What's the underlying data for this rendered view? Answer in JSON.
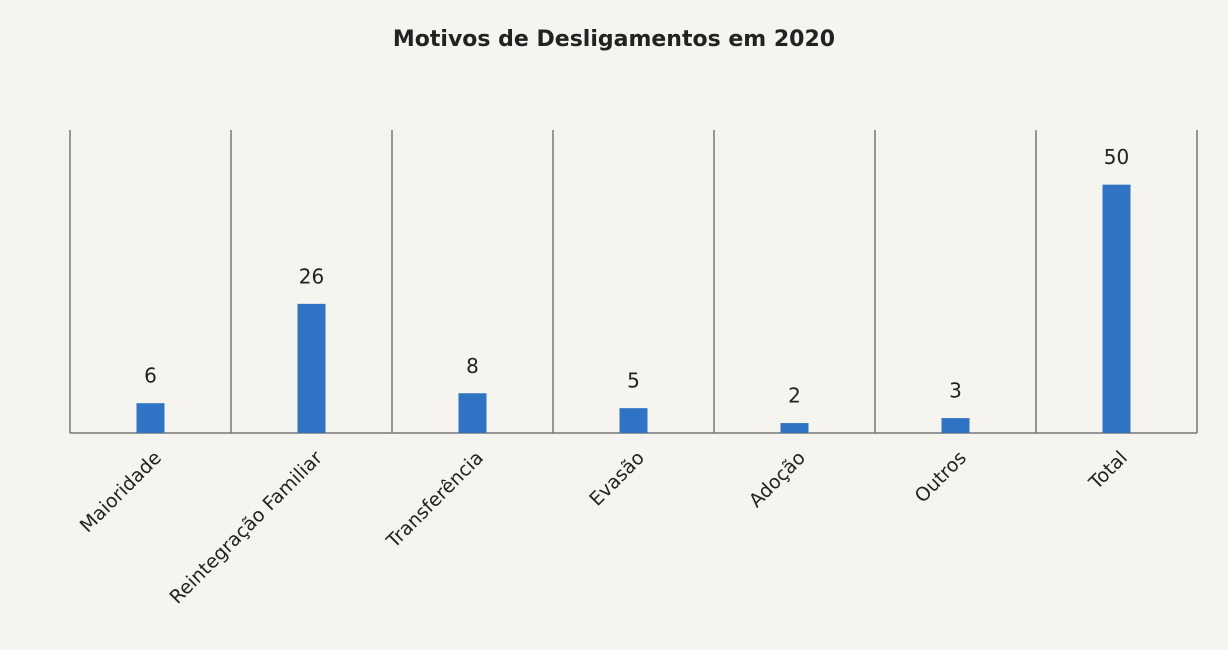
{
  "chart_data": {
    "type": "bar",
    "title": "Motivos de Desligamentos em 2020",
    "categories": [
      "Maioridade",
      "Reintegração Familiar",
      "Transferência",
      "Evasão",
      "Adoção",
      "Outros",
      "Total"
    ],
    "values": [
      6,
      26,
      8,
      5,
      2,
      3,
      50
    ],
    "color": "#2f74c4",
    "ylim": [
      0,
      61
    ]
  }
}
